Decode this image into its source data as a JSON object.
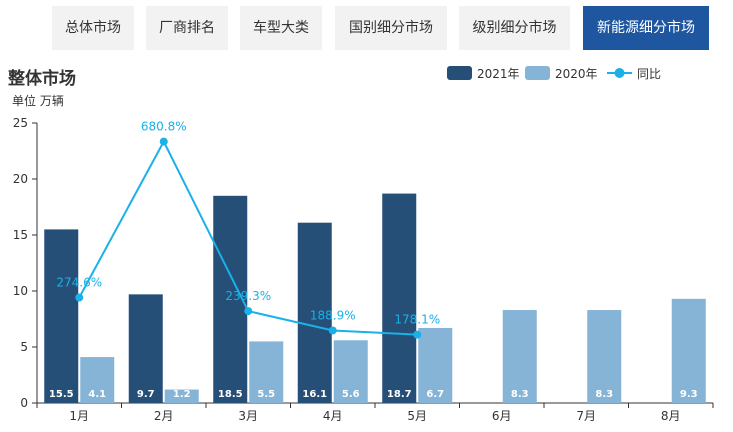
{
  "tabs": [
    {
      "label": "总体市场",
      "active": false
    },
    {
      "label": "厂商排名",
      "active": false
    },
    {
      "label": "车型大类",
      "active": false
    },
    {
      "label": "国别细分市场",
      "active": false
    },
    {
      "label": "级别细分市场",
      "active": false
    },
    {
      "label": "新能源细分市场",
      "active": true
    }
  ],
  "colors": {
    "series2021": "#264f78",
    "series2020": "#85b4d6",
    "yoy": "#1ab0e8",
    "activeTab": "#1f56a0"
  },
  "chart_data": {
    "type": "bar",
    "title": "整体市场",
    "ylabel": "单位 万辆",
    "ylim": [
      0,
      25
    ],
    "yticks": [
      0,
      5,
      10,
      15,
      20,
      25
    ],
    "categories": [
      "1月",
      "2月",
      "3月",
      "4月",
      "5月",
      "6月",
      "7月",
      "8月"
    ],
    "series": [
      {
        "name": "2021年",
        "values": [
          15.5,
          9.7,
          18.5,
          16.1,
          18.7,
          null,
          null,
          null
        ]
      },
      {
        "name": "2020年",
        "values": [
          4.1,
          1.2,
          5.5,
          5.6,
          6.7,
          8.3,
          8.3,
          9.3
        ]
      }
    ],
    "line_series": {
      "name": "同比",
      "values": [
        274.6,
        680.8,
        239.3,
        188.9,
        178.1
      ],
      "labels": [
        "274.6%",
        "680.8%",
        "239.3%",
        "188.9%",
        "178.1%"
      ]
    },
    "legend": [
      "2021年",
      "2020年",
      "同比"
    ]
  }
}
